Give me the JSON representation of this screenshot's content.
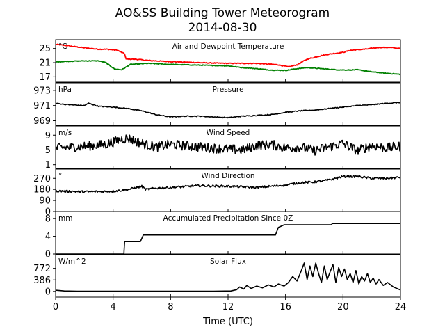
{
  "figure": {
    "title_line1": "AO&SS Building Tower Meteorogram",
    "title_line2": "2014-08-30",
    "xlabel": "Time (UTC)"
  },
  "chart_data": {
    "type": "line",
    "xlim": [
      0,
      24
    ],
    "xticks": [
      0,
      4,
      8,
      12,
      16,
      20,
      24
    ],
    "xtick_labels": [
      "0",
      "4",
      "8",
      "12",
      "16",
      "20",
      "24"
    ],
    "panels": [
      {
        "title": "Air and Dewpoint Temperature",
        "unit": "°C",
        "ylim": [
          15.5,
          27.5
        ],
        "yticks": [
          17,
          21,
          25
        ],
        "ytick_labels": [
          "17",
          "21",
          "25"
        ],
        "series": [
          {
            "color": "#ff0000",
            "noise": 0.12,
            "x": [
              0,
              0.8,
              2,
              3,
              3.6,
              4.3,
              4.8,
              4.9,
              5.5,
              6.5,
              8,
              10,
              12,
              14,
              15.5,
              16.2,
              16.8,
              17.5,
              18.5,
              19.2,
              20,
              20.5,
              21.5,
              22.5,
              23.2,
              24
            ],
            "y": [
              26.2,
              25.8,
              25.2,
              24.8,
              24.8,
              24.5,
              23.5,
              22.0,
              22.0,
              21.6,
              21.3,
              21.0,
              20.8,
              20.8,
              20.4,
              19.8,
              20.4,
              22.0,
              23.0,
              23.5,
              23.9,
              24.5,
              24.8,
              25.3,
              25.3,
              25.0
            ]
          },
          {
            "color": "#008000",
            "noise": 0.1,
            "x": [
              0,
              1,
              2,
              3,
              3.5,
              4.1,
              4.6,
              5.2,
              6.5,
              8,
              10,
              12,
              13,
              14,
              15,
              16,
              16.8,
              17.5,
              18.5,
              19.5,
              20.2,
              21,
              22,
              23,
              24
            ],
            "y": [
              21.2,
              21.4,
              21.5,
              21.5,
              21.0,
              19.2,
              19.0,
              20.5,
              20.8,
              20.5,
              20.3,
              20.1,
              19.6,
              19.3,
              18.9,
              18.8,
              19.3,
              19.6,
              19.3,
              19.0,
              18.9,
              19.0,
              18.4,
              18.0,
              17.7
            ]
          }
        ]
      },
      {
        "title": "Pressure",
        "unit": "hPa",
        "ylim": [
          968.4,
          974.0
        ],
        "yticks": [
          969,
          971,
          973
        ],
        "ytick_labels": [
          "969",
          "971",
          "973"
        ],
        "series": [
          {
            "color": "#000000",
            "noise": 0.06,
            "x": [
              0,
              1,
              2,
              2.3,
              3,
              4,
              5,
              6,
              7,
              8,
              9,
              10,
              11,
              12,
              13,
              14,
              15,
              16,
              17,
              18,
              19,
              20,
              21,
              22,
              23,
              24
            ],
            "y": [
              971.3,
              971.1,
              971.0,
              971.3,
              970.9,
              970.8,
              970.6,
              970.3,
              969.8,
              969.5,
              969.6,
              969.6,
              969.5,
              969.4,
              969.6,
              969.7,
              969.8,
              970.1,
              970.3,
              970.4,
              970.6,
              970.8,
              971.0,
              971.1,
              971.3,
              971.4
            ]
          }
        ]
      },
      {
        "title": "Wind Speed",
        "unit": "m/s",
        "ylim": [
          0,
          11.5
        ],
        "yticks": [
          1,
          5,
          9
        ],
        "ytick_labels": [
          "1",
          "5",
          "9"
        ],
        "series": [
          {
            "color": "#000000",
            "noise": 1.3,
            "x": [
              0,
              2,
              3.5,
              4.5,
              5,
              6,
              7,
              8,
              10,
              12,
              13,
              14,
              15,
              16,
              17,
              18,
              19,
              20,
              21,
              22,
              23,
              24
            ],
            "y": [
              5.5,
              6.0,
              6.5,
              7.8,
              8.2,
              6.8,
              5.8,
              6.5,
              5.8,
              5.2,
              5.0,
              6.2,
              6.5,
              5.5,
              5.8,
              4.8,
              5.8,
              6.8,
              4.8,
              6.2,
              5.5,
              6.0
            ]
          }
        ]
      },
      {
        "title": "Wind Direction",
        "unit": "°",
        "ylim": [
          0,
          345
        ],
        "yticks": [
          0,
          90,
          180,
          270
        ],
        "ytick_labels": [
          "0",
          "90",
          "180",
          "270"
        ],
        "series": [
          {
            "color": "#000000",
            "noise": 9,
            "x": [
              0,
              2,
              4,
              5,
              6,
              6.3,
              7,
              8,
              10,
              12,
              14,
              16,
              17,
              18,
              19,
              20,
              21,
              22,
              23,
              24
            ],
            "y": [
              168,
              160,
              165,
              178,
              205,
              178,
              190,
              195,
              210,
              205,
              195,
              215,
              235,
              240,
              255,
              285,
              285,
              270,
              270,
              278
            ]
          }
        ]
      },
      {
        "title": "Accumulated Precipitation Since 0Z",
        "unit": "mm",
        "ylim": [
          0,
          9.6
        ],
        "yticks": [
          0,
          4,
          8
        ],
        "ytick_labels": [
          "0",
          "4",
          "8"
        ],
        "series": [
          {
            "color": "#000000",
            "noise": 0,
            "x": [
              0,
              4.75,
              4.8,
              5.9,
              6.1,
              15.3,
              15.5,
              15.9,
              19.2,
              19.25,
              24
            ],
            "y": [
              0,
              0,
              2.8,
              2.8,
              4.3,
              4.3,
              6.0,
              6.6,
              6.6,
              6.9,
              6.9
            ]
          }
        ]
      },
      {
        "title": "Solar Flux",
        "unit": "W/m^2",
        "ylim": [
          -190,
          1230
        ],
        "yticks": [
          0,
          386,
          772
        ],
        "ytick_labels": [
          "0",
          "386",
          "772"
        ],
        "series": [
          {
            "color": "#000000",
            "noise": 0,
            "x": [
              0,
              0.6,
              1.5,
              4,
              8,
              11,
              12.2,
              12.6,
              12.8,
              13.1,
              13.3,
              13.6,
              14,
              14.4,
              14.8,
              15.2,
              15.5,
              15.9,
              16.2,
              16.5,
              16.8,
              17.1,
              17.3,
              17.5,
              17.7,
              17.9,
              18.1,
              18.3,
              18.5,
              18.7,
              18.9,
              19.1,
              19.3,
              19.5,
              19.7,
              19.9,
              20.1,
              20.3,
              20.5,
              20.7,
              20.9,
              21.1,
              21.3,
              21.5,
              21.7,
              21.9,
              22.1,
              22.3,
              22.5,
              22.8,
              23.1,
              23.5,
              24
            ],
            "y": [
              40,
              15,
              5,
              5,
              5,
              5,
              15,
              60,
              150,
              80,
              200,
              100,
              180,
              120,
              220,
              150,
              250,
              180,
              300,
              500,
              350,
              700,
              950,
              400,
              850,
              500,
              950,
              600,
              300,
              850,
              400,
              650,
              900,
              300,
              800,
              500,
              750,
              400,
              600,
              300,
              700,
              250,
              500,
              350,
              600,
              300,
              450,
              250,
              400,
              200,
              300,
              150,
              50
            ]
          }
        ]
      }
    ]
  }
}
